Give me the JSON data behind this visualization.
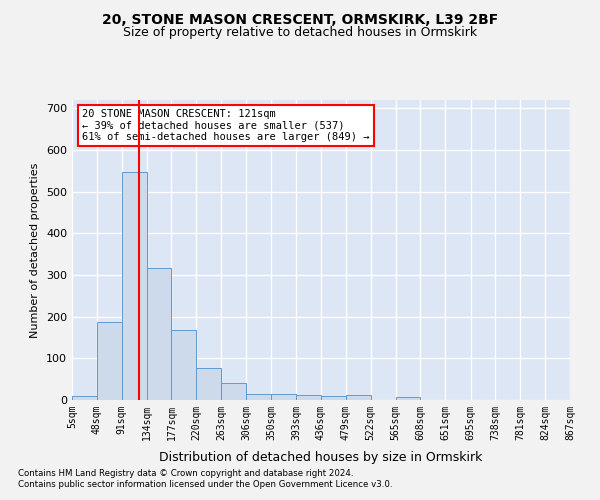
{
  "title1": "20, STONE MASON CRESCENT, ORMSKIRK, L39 2BF",
  "title2": "Size of property relative to detached houses in Ormskirk",
  "xlabel": "Distribution of detached houses by size in Ormskirk",
  "ylabel": "Number of detached properties",
  "footer1": "Contains HM Land Registry data © Crown copyright and database right 2024.",
  "footer2": "Contains public sector information licensed under the Open Government Licence v3.0.",
  "bar_color": "#ccdaeb",
  "bar_edge_color": "#5b9bd5",
  "background_color": "#dce6f5",
  "grid_color": "#ffffff",
  "fig_bg_color": "#f2f2f2",
  "red_line_x": 121,
  "annotation_line1": "20 STONE MASON CRESCENT: 121sqm",
  "annotation_line2": "← 39% of detached houses are smaller (537)",
  "annotation_line3": "61% of semi-detached houses are larger (849) →",
  "bin_edges": [
    5,
    48,
    91,
    134,
    177,
    220,
    263,
    306,
    350,
    393,
    436,
    479,
    522,
    565,
    608,
    651,
    695,
    738,
    781,
    824,
    867
  ],
  "bar_heights": [
    9,
    187,
    547,
    316,
    168,
    76,
    40,
    15,
    15,
    11,
    10,
    11,
    0,
    7,
    0,
    0,
    0,
    0,
    0,
    0
  ],
  "ylim": [
    0,
    720
  ],
  "yticks": [
    0,
    100,
    200,
    300,
    400,
    500,
    600,
    700
  ]
}
